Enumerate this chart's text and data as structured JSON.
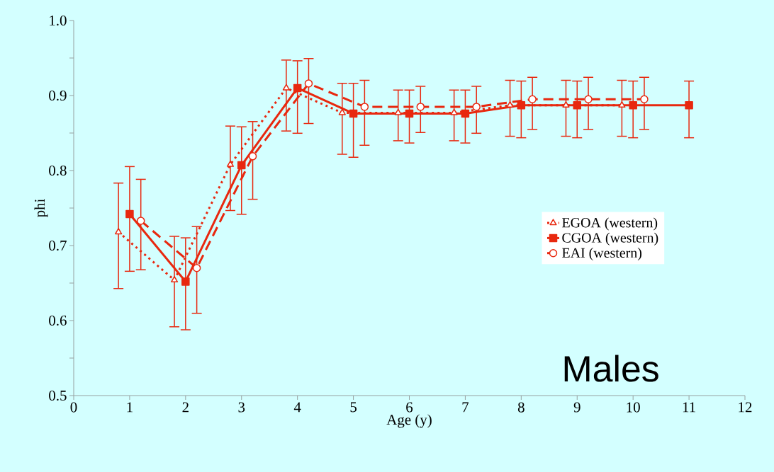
{
  "chart_data": {
    "type": "line",
    "xlabel": "Age (y)",
    "ylabel": "phi",
    "annotations": [
      "Males"
    ],
    "xlim": [
      0,
      12
    ],
    "ylim": [
      0.5,
      1.0
    ],
    "xticks": [
      0,
      1,
      2,
      3,
      4,
      5,
      6,
      7,
      8,
      9,
      10,
      11,
      12
    ],
    "yticks": [
      {
        "value": 0.5,
        "label": "0.5"
      },
      {
        "value": 0.55,
        "label": null
      },
      {
        "value": 0.6,
        "label": "0.6"
      },
      {
        "value": 0.65,
        "label": null
      },
      {
        "value": 0.7,
        "label": "0.7"
      },
      {
        "value": 0.75,
        "label": null
      },
      {
        "value": 0.8,
        "label": "0.8"
      },
      {
        "value": 0.85,
        "label": null
      },
      {
        "value": 0.9,
        "label": "0.9"
      },
      {
        "value": 0.95,
        "label": null
      },
      {
        "value": 1.0,
        "label": "1.0"
      }
    ],
    "grid": false,
    "legend": "right",
    "series": [
      {
        "name": "EGOA (western)",
        "color": "#e8280f",
        "marker": "triangle",
        "line_style": "dotted",
        "x": [
          0.8,
          1.8,
          2.8,
          3.8,
          4.8,
          5.8,
          6.8,
          7.8,
          8.8,
          9.8
        ],
        "values": [
          0.718,
          0.654,
          0.808,
          0.91,
          0.877,
          0.877,
          0.877,
          0.887,
          0.887,
          0.887
        ],
        "errors": [
          [
            0.642,
            0.784
          ],
          [
            0.591,
            0.713
          ],
          [
            0.746,
            0.86
          ],
          [
            0.852,
            0.948
          ],
          [
            0.821,
            0.917
          ],
          [
            0.839,
            0.908
          ],
          [
            0.839,
            0.908
          ],
          [
            0.845,
            0.921
          ],
          [
            0.845,
            0.921
          ],
          [
            0.845,
            0.921
          ]
        ]
      },
      {
        "name": "CGOA (western)",
        "color": "#e8280f",
        "marker": "square",
        "line_style": "solid",
        "x": [
          1,
          2,
          3,
          4,
          5,
          6,
          7,
          8,
          9,
          10,
          11
        ],
        "values": [
          0.742,
          0.652,
          0.807,
          0.91,
          0.876,
          0.876,
          0.876,
          0.887,
          0.887,
          0.887,
          0.887
        ],
        "errors": [
          [
            0.665,
            0.806
          ],
          [
            0.587,
            0.711
          ],
          [
            0.741,
            0.859
          ],
          [
            0.849,
            0.947
          ],
          [
            0.817,
            0.917
          ],
          [
            0.836,
            0.908
          ],
          [
            0.836,
            0.908
          ],
          [
            0.843,
            0.92
          ],
          [
            0.843,
            0.92
          ],
          [
            0.843,
            0.92
          ],
          [
            0.843,
            0.92
          ]
        ]
      },
      {
        "name": "EAI (western)",
        "color": "#e8280f",
        "marker": "circle",
        "line_style": "dashed",
        "x": [
          1.2,
          2.2,
          3.2,
          4.2,
          5.2,
          6.2,
          7.2,
          8.2,
          9.2,
          10.2
        ],
        "values": [
          0.733,
          0.67,
          0.819,
          0.916,
          0.885,
          0.885,
          0.885,
          0.895,
          0.895,
          0.895
        ],
        "errors": [
          [
            0.667,
            0.789
          ],
          [
            0.609,
            0.726
          ],
          [
            0.761,
            0.866
          ],
          [
            0.862,
            0.95
          ],
          [
            0.833,
            0.921
          ],
          [
            0.85,
            0.913
          ],
          [
            0.849,
            0.913
          ],
          [
            0.854,
            0.925
          ],
          [
            0.854,
            0.925
          ],
          [
            0.854,
            0.925
          ]
        ]
      }
    ]
  }
}
